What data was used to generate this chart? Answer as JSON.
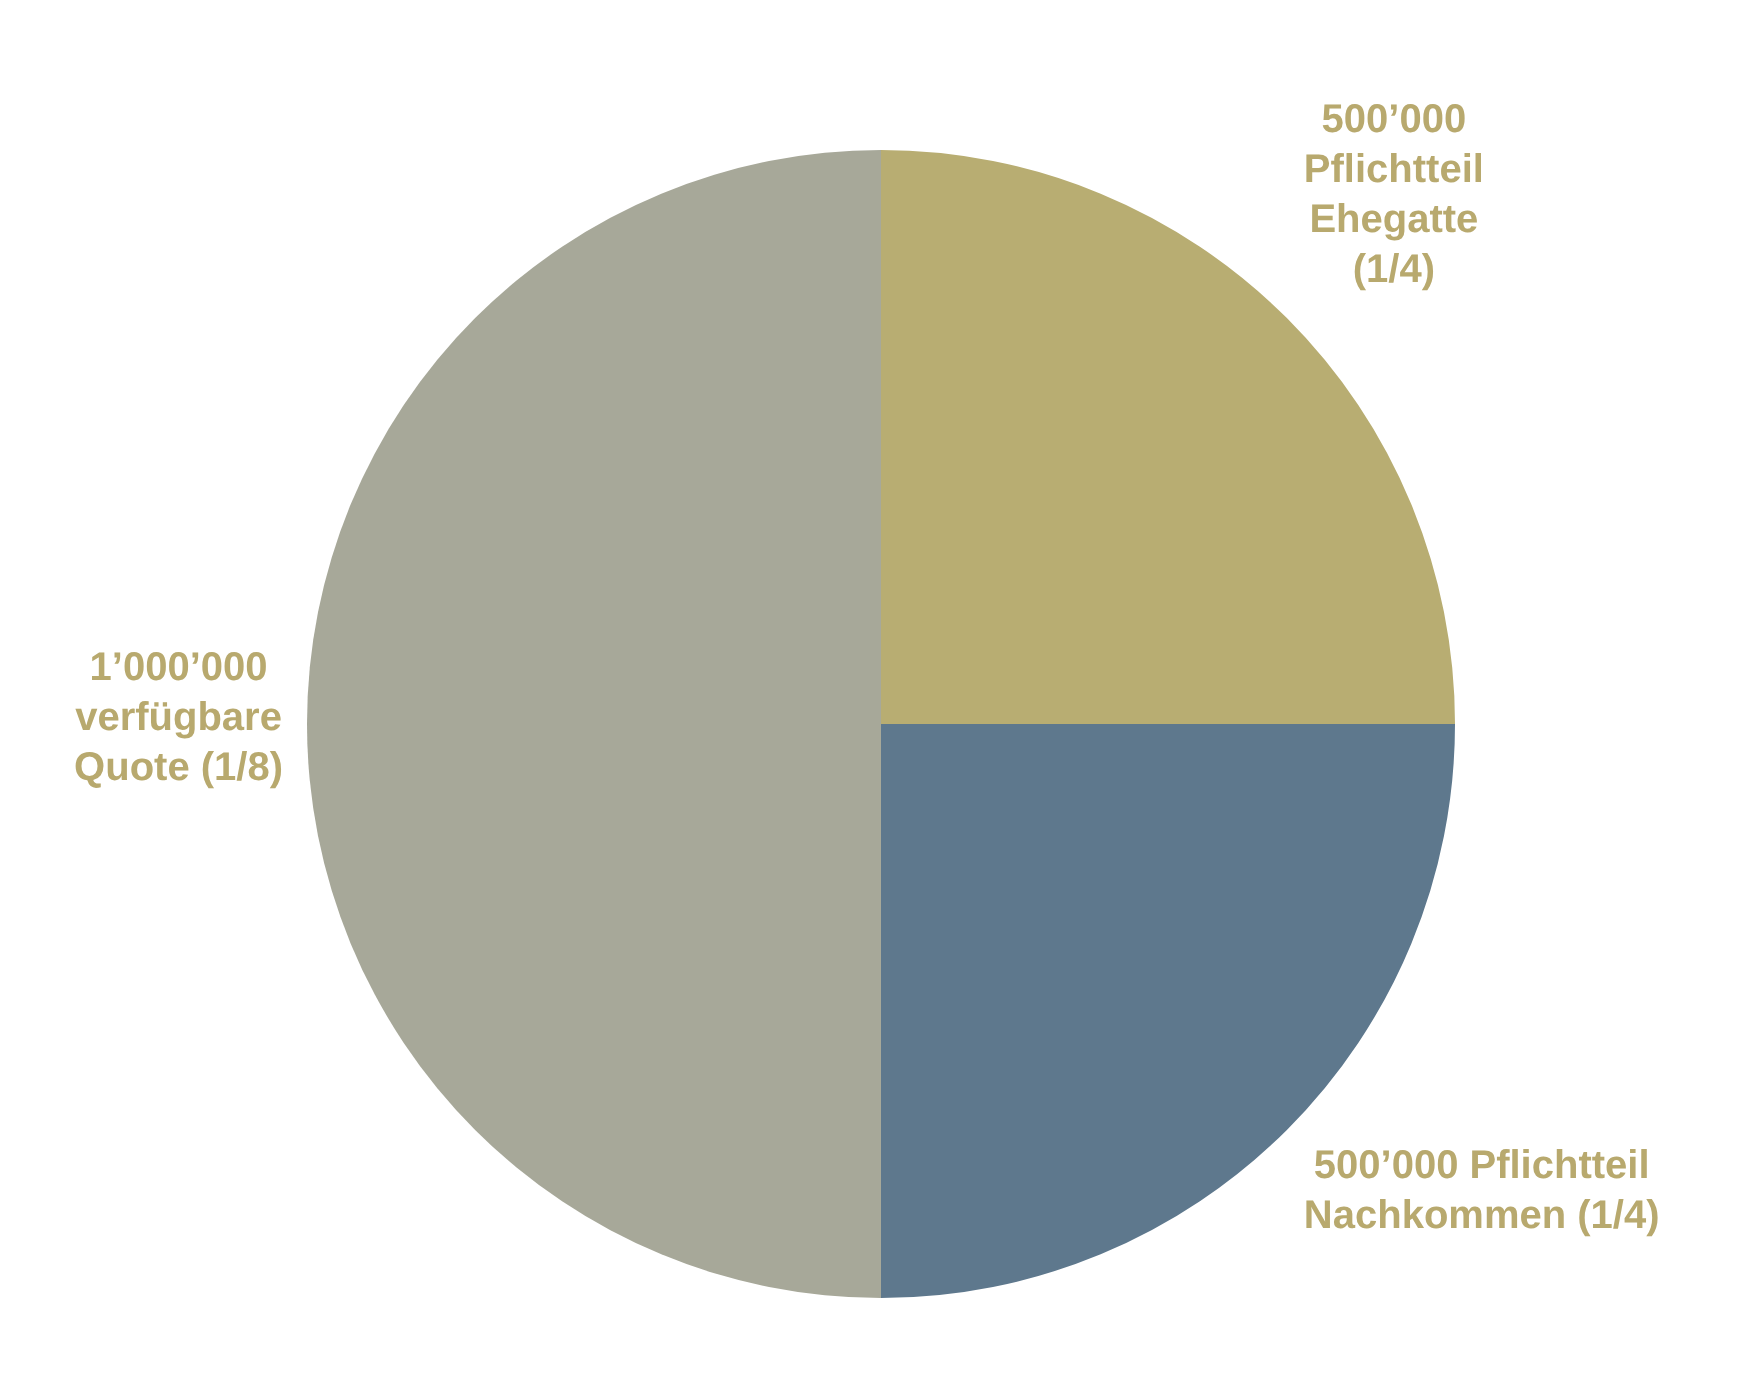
{
  "chart_data": {
    "type": "pie",
    "categories": [
      "500’000 Pflichtteil Ehegatte (1/4)",
      "500’000 Pflichtteil Nachkommen (1/4)",
      "1’000’000 verfügbare Quote (1/8)"
    ],
    "values": [
      25,
      25,
      50
    ],
    "colors": [
      "#b8ad72",
      "#5e788d",
      "#a7a899"
    ],
    "legend": false
  }
}
